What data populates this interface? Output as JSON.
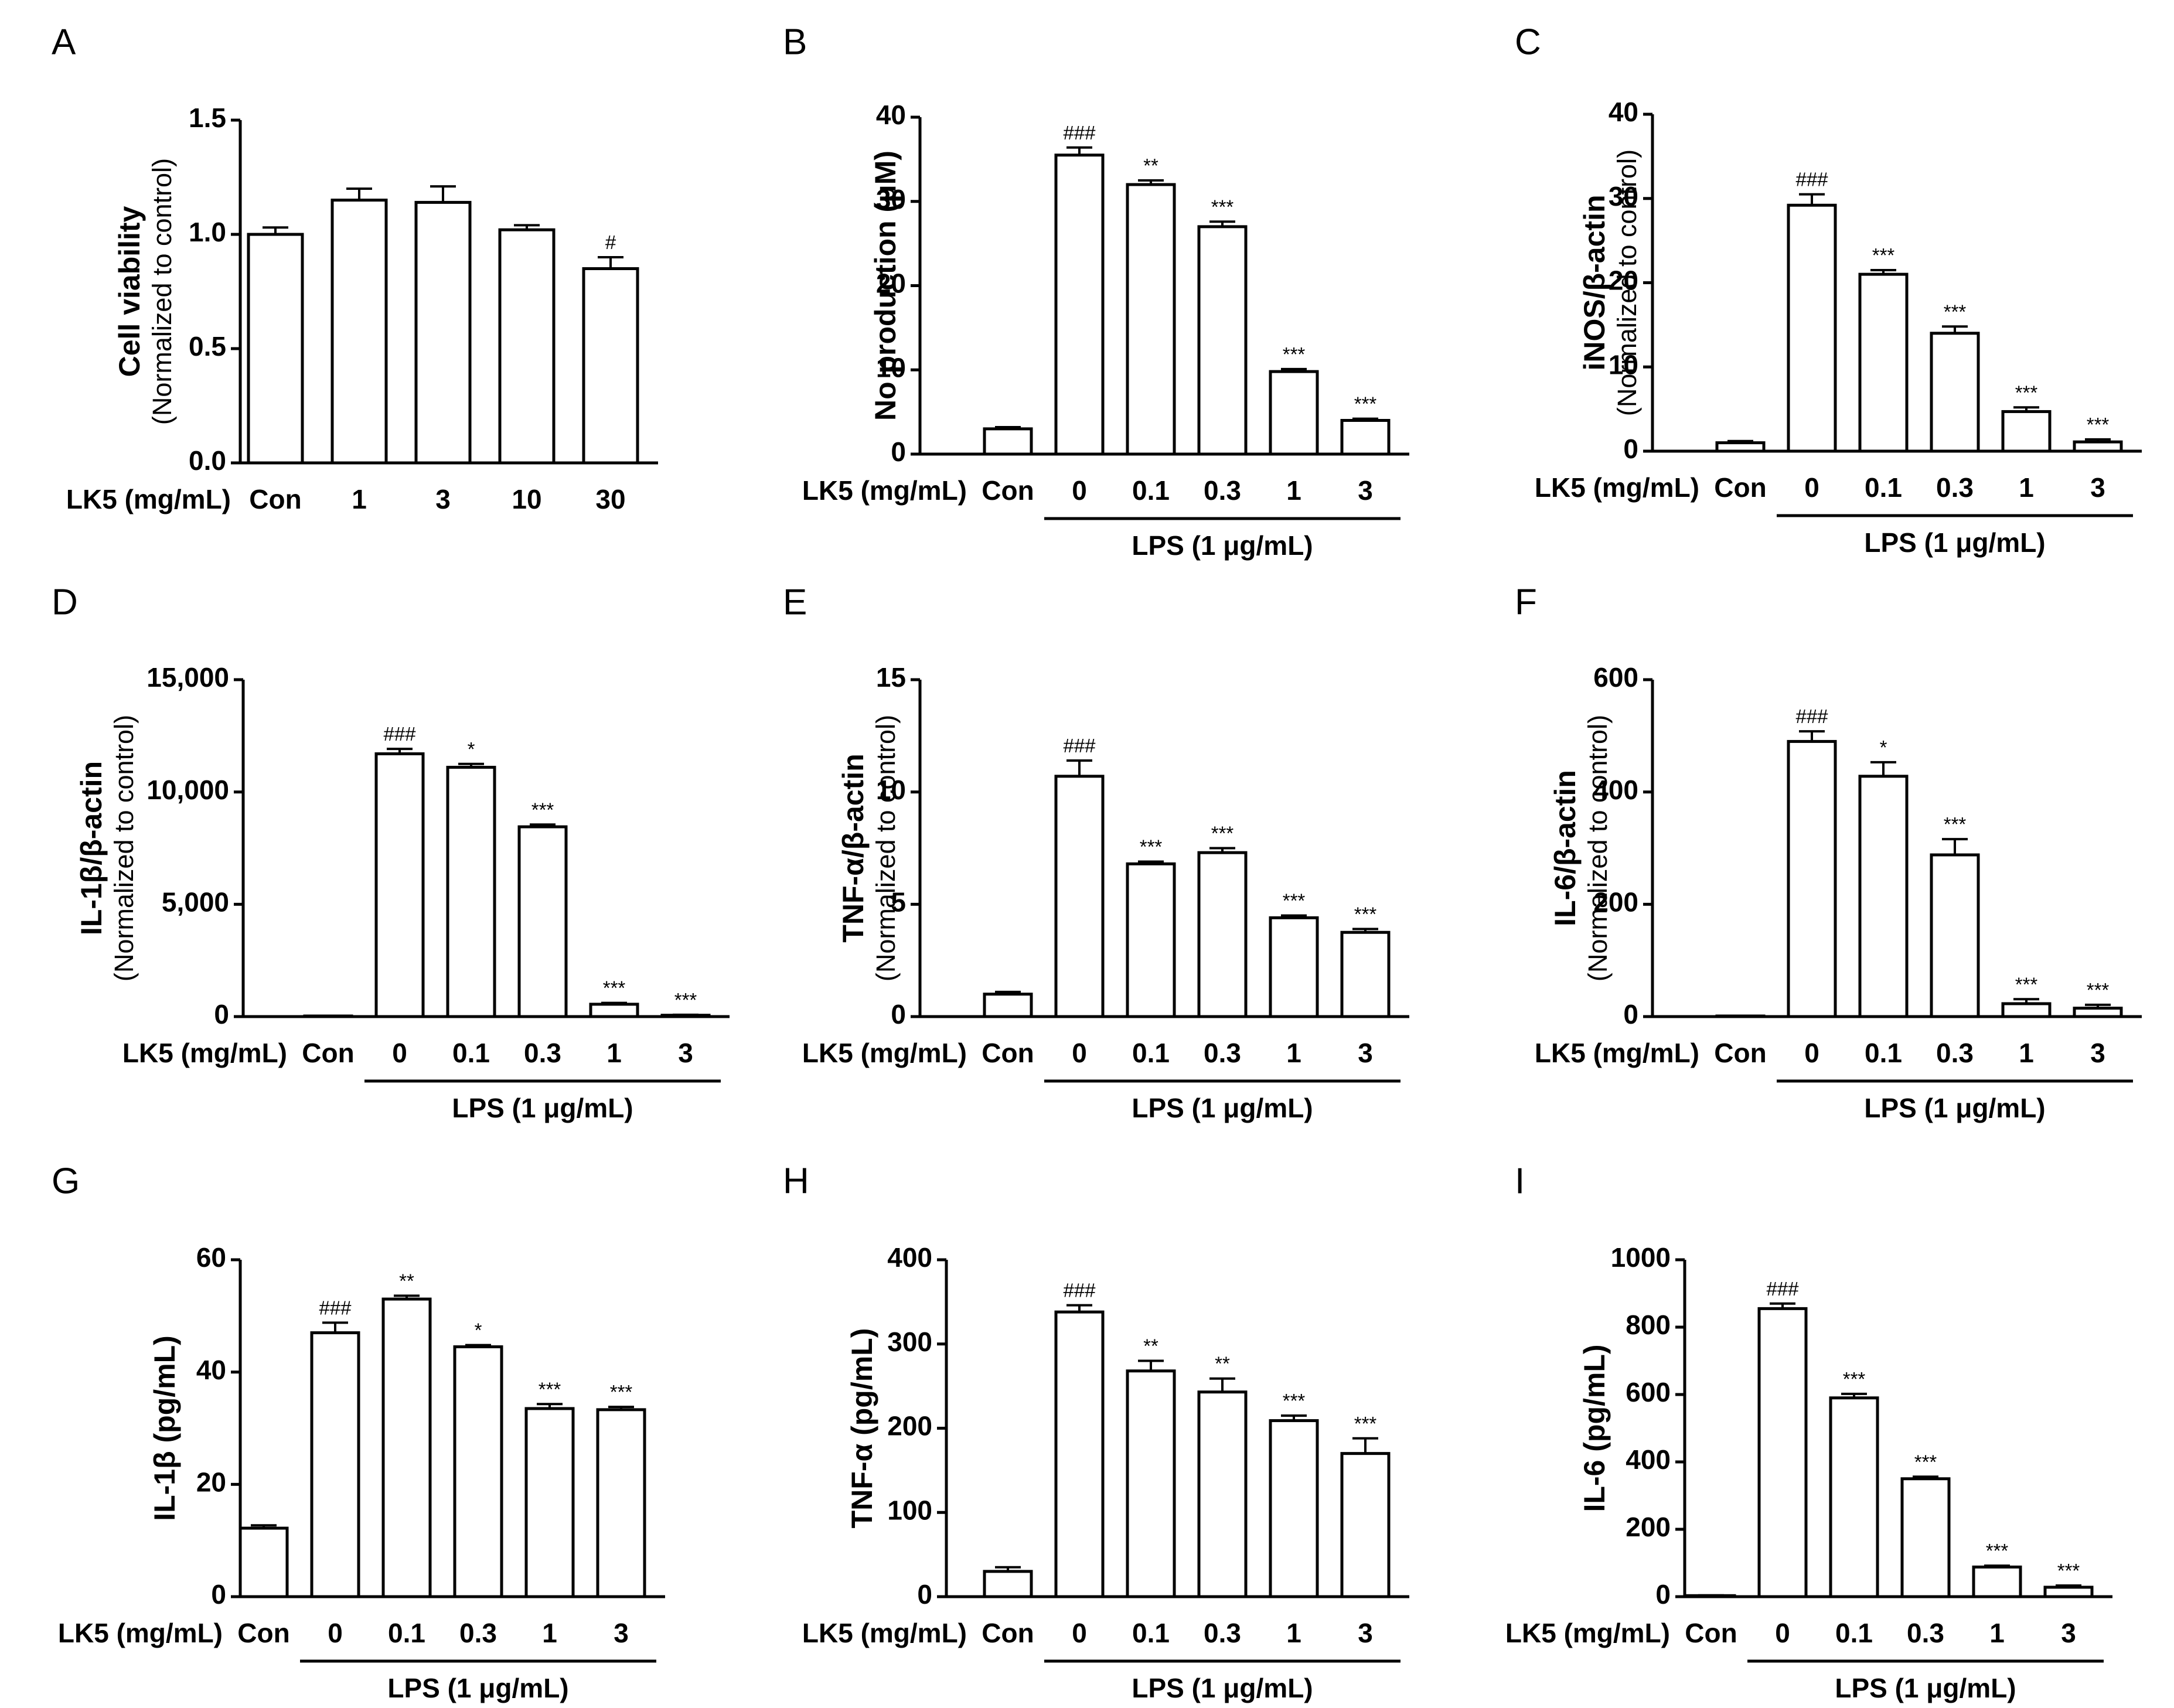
{
  "chart_data": [
    {
      "panel": "A",
      "type": "bar",
      "ylabel_main": "Cell viability",
      "ylabel_sub": "(Normalized to control)",
      "ylim": [
        0,
        1.5
      ],
      "yticks": [
        "0.0",
        "0.5",
        "1.0",
        "1.5"
      ],
      "ytick_values": [
        0,
        0.5,
        1.0,
        1.5
      ],
      "x_row_label": "LK5 (mg/mL)",
      "categories": [
        "Con",
        "1",
        "3",
        "10",
        "30"
      ],
      "values": [
        1.0,
        1.15,
        1.14,
        1.02,
        0.85
      ],
      "errors": [
        0.03,
        0.05,
        0.07,
        0.02,
        0.05
      ],
      "annotations": [
        "",
        "",
        "",
        "",
        "#"
      ],
      "group_label": ""
    },
    {
      "panel": "B",
      "type": "bar",
      "ylabel_main": "No production (μM)",
      "ylabel_sub": "",
      "ylim": [
        0,
        40
      ],
      "yticks": [
        "0",
        "10",
        "20",
        "30",
        "40"
      ],
      "ytick_values": [
        0,
        10,
        20,
        30,
        40
      ],
      "x_row_label": "LK5 (mg/mL)",
      "categories": [
        "Con",
        "0",
        "0.1",
        "0.3",
        "1",
        "3"
      ],
      "values": [
        3.0,
        35.5,
        32.0,
        27.0,
        9.8,
        4.0
      ],
      "errors": [
        0.2,
        0.9,
        0.5,
        0.6,
        0.3,
        0.2
      ],
      "annotations": [
        "",
        "###",
        "**",
        "***",
        "***",
        "***"
      ],
      "group_label": "LPS (1 μg/mL)"
    },
    {
      "panel": "C",
      "type": "bar",
      "ylabel_main": "iNOS/β-actin",
      "ylabel_sub": "(Normalized to control)",
      "ylim": [
        0,
        40
      ],
      "yticks": [
        "0",
        "10",
        "20",
        "30",
        "40"
      ],
      "ytick_values": [
        0,
        10,
        20,
        30,
        40
      ],
      "x_row_label": "LK5 (mg/mL)",
      "categories": [
        "Con",
        "0",
        "0.1",
        "0.3",
        "1",
        "3"
      ],
      "values": [
        1.0,
        29.2,
        21.0,
        14.0,
        4.7,
        1.1
      ],
      "errors": [
        0.2,
        1.3,
        0.5,
        0.8,
        0.5,
        0.3
      ],
      "annotations": [
        "",
        "###",
        "***",
        "***",
        "***",
        "***"
      ],
      "group_label": "LPS (1 μg/mL)"
    },
    {
      "panel": "D",
      "type": "bar",
      "ylabel_main": "IL-1β/β-actin",
      "ylabel_sub": "(Normalized to control)",
      "ylim": [
        0,
        15000
      ],
      "yticks": [
        "0",
        "5,000",
        "10,000",
        "15,000"
      ],
      "ytick_values": [
        0,
        5000,
        10000,
        15000
      ],
      "x_row_label": "LK5 (mg/mL)",
      "categories": [
        "Con",
        "0",
        "0.1",
        "0.3",
        "1",
        "3"
      ],
      "values": [
        1,
        11700,
        11100,
        8450,
        550,
        60
      ],
      "errors": [
        0,
        220,
        150,
        100,
        60,
        20
      ],
      "annotations": [
        "",
        "###",
        "*",
        "***",
        "***",
        "***"
      ],
      "group_label": "LPS (1 μg/mL)"
    },
    {
      "panel": "E",
      "type": "bar",
      "ylabel_main": "TNF-α/β-actin",
      "ylabel_sub": "(Normalized to control)",
      "ylim": [
        0,
        15
      ],
      "yticks": [
        "0",
        "5",
        "10",
        "15"
      ],
      "ytick_values": [
        0,
        5,
        10,
        15
      ],
      "x_row_label": "LK5 (mg/mL)",
      "categories": [
        "Con",
        "0",
        "0.1",
        "0.3",
        "1",
        "3"
      ],
      "values": [
        1.0,
        10.7,
        6.8,
        7.3,
        4.4,
        3.75
      ],
      "errors": [
        0.1,
        0.7,
        0.1,
        0.2,
        0.1,
        0.15
      ],
      "annotations": [
        "",
        "###",
        "***",
        "***",
        "***",
        "***"
      ],
      "group_label": "LPS (1 μg/mL)"
    },
    {
      "panel": "F",
      "type": "bar",
      "ylabel_main": "IL-6/β-actin",
      "ylabel_sub": "(Normalized to control)",
      "ylim": [
        0,
        600
      ],
      "yticks": [
        "0",
        "200",
        "400",
        "600"
      ],
      "ytick_values": [
        0,
        200,
        400,
        600
      ],
      "x_row_label": "LK5 (mg/mL)",
      "categories": [
        "Con",
        "0",
        "0.1",
        "0.3",
        "1",
        "3"
      ],
      "values": [
        1,
        490,
        428,
        288,
        23,
        15
      ],
      "errors": [
        0,
        18,
        25,
        28,
        8,
        6
      ],
      "annotations": [
        "",
        "###",
        "*",
        "***",
        "***",
        "***"
      ],
      "group_label": "LPS (1 μg/mL)"
    },
    {
      "panel": "G",
      "type": "bar",
      "ylabel_main": "IL-1β (pg/mL)",
      "ylabel_sub": "",
      "ylim": [
        0,
        60
      ],
      "yticks": [
        "0",
        "20",
        "40",
        "60"
      ],
      "ytick_values": [
        0,
        20,
        40,
        60
      ],
      "x_row_label": "LK5 (mg/mL)",
      "categories": [
        "Con",
        "0",
        "0.1",
        "0.3",
        "1",
        "3"
      ],
      "values": [
        12.2,
        47.0,
        53.0,
        44.5,
        33.5,
        33.3
      ],
      "errors": [
        0.5,
        1.8,
        0.6,
        0.3,
        0.8,
        0.5
      ],
      "annotations": [
        "",
        "###",
        "**",
        "*",
        "***",
        "***"
      ],
      "group_label": "LPS (1 μg/mL)"
    },
    {
      "panel": "H",
      "type": "bar",
      "ylabel_main": "TNF-α (pg/mL)",
      "ylabel_sub": "",
      "ylim": [
        0,
        400
      ],
      "yticks": [
        "0",
        "100",
        "200",
        "300",
        "400"
      ],
      "ytick_values": [
        0,
        100,
        200,
        300,
        400
      ],
      "x_row_label": "LK5 (mg/mL)",
      "categories": [
        "Con",
        "0",
        "0.1",
        "0.3",
        "1",
        "3"
      ],
      "values": [
        30,
        338,
        268,
        243,
        209,
        170
      ],
      "errors": [
        5,
        8,
        12,
        16,
        6,
        18
      ],
      "annotations": [
        "",
        "###",
        "**",
        "**",
        "***",
        "***"
      ],
      "group_label": "LPS (1 μg/mL)"
    },
    {
      "panel": "I",
      "type": "bar",
      "ylabel_main": "IL-6 (pg/mL)",
      "ylabel_sub": "",
      "ylim": [
        0,
        1000
      ],
      "yticks": [
        "0",
        "200",
        "400",
        "600",
        "800",
        "1000"
      ],
      "ytick_values": [
        0,
        200,
        400,
        600,
        800,
        1000
      ],
      "x_row_label": "LK5 (mg/mL)",
      "categories": [
        "Con",
        "0",
        "0.1",
        "0.3",
        "1",
        "3"
      ],
      "values": [
        3,
        855,
        590,
        350,
        88,
        28
      ],
      "errors": [
        1,
        15,
        12,
        6,
        4,
        5
      ],
      "annotations": [
        "",
        "###",
        "***",
        "***",
        "***",
        "***"
      ],
      "group_label": "LPS (1 μg/mL)"
    }
  ]
}
